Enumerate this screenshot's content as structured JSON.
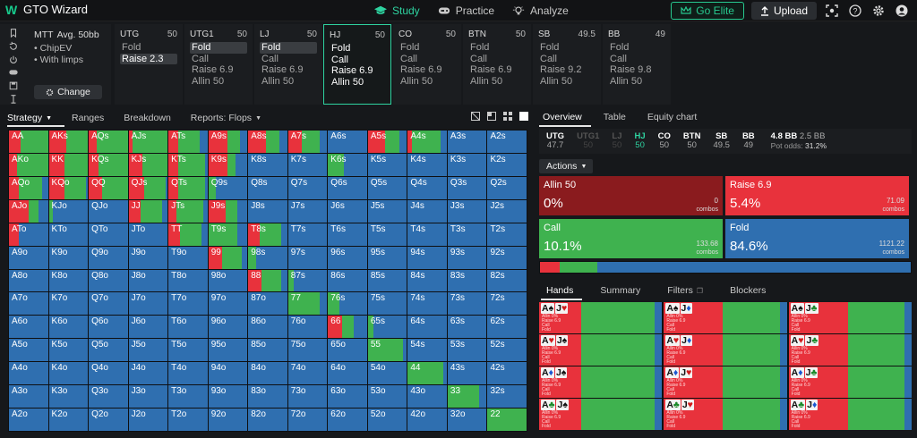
{
  "app": {
    "title": "GTO Wizard"
  },
  "nav": [
    {
      "label": "Study",
      "icon": "graduation-cap-icon",
      "active": true
    },
    {
      "label": "Practice",
      "icon": "gamepad-icon",
      "active": false
    },
    {
      "label": "Analyze",
      "icon": "lightbulb-icon",
      "active": false
    }
  ],
  "topbar": {
    "elite_label": "Go Elite",
    "upload_label": "Upload"
  },
  "settings": {
    "format": "MTT",
    "depth": "Avg. 50bb",
    "options": [
      "ChipEV",
      "With limps"
    ],
    "change_label": "Change"
  },
  "positions": [
    {
      "name": "UTG",
      "stack": "50",
      "actions": [
        "Fold",
        "Raise 2.3"
      ],
      "selected": 1,
      "active": false
    },
    {
      "name": "UTG1",
      "stack": "50",
      "actions": [
        "Fold",
        "Call",
        "Raise 6.9",
        "Allin 50"
      ],
      "selected": 0,
      "active": false
    },
    {
      "name": "LJ",
      "stack": "50",
      "actions": [
        "Fold",
        "Call",
        "Raise 6.9",
        "Allin 50"
      ],
      "selected": 0,
      "active": false
    },
    {
      "name": "HJ",
      "stack": "50",
      "actions": [
        "Fold",
        "Call",
        "Raise 6.9",
        "Allin 50"
      ],
      "selected": -1,
      "active": true
    },
    {
      "name": "CO",
      "stack": "50",
      "actions": [
        "Fold",
        "Call",
        "Raise 6.9",
        "Allin 50"
      ],
      "selected": -1,
      "active": false
    },
    {
      "name": "BTN",
      "stack": "50",
      "actions": [
        "Fold",
        "Call",
        "Raise 6.9",
        "Allin 50"
      ],
      "selected": -1,
      "active": false
    },
    {
      "name": "SB",
      "stack": "49.5",
      "actions": [
        "Fold",
        "Call",
        "Raise 9.2",
        "Allin 50"
      ],
      "selected": -1,
      "active": false
    },
    {
      "name": "BB",
      "stack": "49",
      "actions": [
        "Fold",
        "Call",
        "Raise 9.8",
        "Allin 50"
      ],
      "selected": -1,
      "active": false
    }
  ],
  "strategy_tabs": [
    "Strategy",
    "Ranges",
    "Breakdown",
    "Reports: Flops"
  ],
  "colors": {
    "fold": "#2f6fb0",
    "call": "#3fb24f",
    "raise": "#e8323c",
    "allin": "#8a1b1e",
    "accent": "#2ed3a0"
  },
  "ranks": [
    "A",
    "K",
    "Q",
    "J",
    "T",
    "9",
    "8",
    "7",
    "6",
    "5",
    "4",
    "3",
    "2"
  ],
  "grid_special": {
    "AA": [
      0,
      0.3,
      0.7
    ],
    "AKs": [
      0,
      0.45,
      0.55
    ],
    "AQs": [
      0,
      0.2,
      0.8
    ],
    "AJs": [
      0,
      0.1,
      0.9
    ],
    "ATs": [
      0,
      0.25,
      0.55
    ],
    "A9s": [
      0,
      0.5,
      0.3
    ],
    "A8s": [
      0,
      0.45,
      0.35
    ],
    "A7s": [
      0,
      0.35,
      0.45
    ],
    "A6s": [
      0,
      0,
      0
    ],
    "A5s": [
      0,
      0.45,
      0.35
    ],
    "A4s": [
      0,
      0.1,
      0.75
    ],
    "A3s": [
      0,
      0,
      0
    ],
    "A2s": [
      0,
      0,
      0
    ],
    "AKo": [
      0,
      0.2,
      0.8
    ],
    "KK": [
      0,
      0.4,
      0.6
    ],
    "KQs": [
      0,
      0.25,
      0.75
    ],
    "KJs": [
      0,
      0.35,
      0.65
    ],
    "KTs": [
      0,
      0.25,
      0.7
    ],
    "K9s": [
      0,
      0.5,
      0.2
    ],
    "K8s": [
      0,
      0,
      0
    ],
    "K7s": [
      0,
      0,
      0
    ],
    "K6s": [
      0,
      0,
      0.4
    ],
    "K5s": [
      0,
      0,
      0
    ],
    "AQo": [
      0,
      0.25,
      0.6
    ],
    "KQo": [
      0,
      0.4,
      0.55
    ],
    "QQ": [
      0,
      0.35,
      0.65
    ],
    "QJs": [
      0,
      0.4,
      0.55
    ],
    "QTs": [
      0,
      0.25,
      0.7
    ],
    "Q9s": [
      0,
      0,
      0.2
    ],
    "AJo": [
      0,
      0.5,
      0.25
    ],
    "KJo": [
      0,
      0,
      0.1
    ],
    "JJ": [
      0,
      0.3,
      0.55
    ],
    "JTs": [
      0,
      0.2,
      0.7
    ],
    "J9s": [
      0,
      0.45,
      0.3
    ],
    "ATo": [
      0,
      0.25,
      0
    ],
    "TT": [
      0,
      0.3,
      0.55
    ],
    "T9s": [
      0,
      0,
      0.75
    ],
    "T8s": [
      0,
      0.3,
      0.55
    ],
    "99": [
      0,
      0.35,
      0.5
    ],
    "88": [
      0,
      0.35,
      0.5
    ],
    "98s": [
      0,
      0,
      0.2
    ],
    "87s": [
      0,
      0,
      0.15
    ],
    "77": [
      0,
      0,
      0.8
    ],
    "76s": [
      0,
      0,
      0.3
    ],
    "66": [
      0,
      0.35,
      0.3
    ],
    "65s": [
      0,
      0,
      0.15
    ],
    "55": [
      0,
      0,
      0.9
    ],
    "54s": [
      0,
      0,
      0
    ],
    "44": [
      0,
      0,
      0.9
    ],
    "33": [
      0,
      0,
      0.8
    ],
    "22": [
      0,
      0,
      1
    ]
  },
  "overview_tabs": [
    "Overview",
    "Table",
    "Equity chart"
  ],
  "posbar": [
    {
      "name": "UTG",
      "stack": "47.7",
      "state": "normal"
    },
    {
      "name": "UTG1",
      "stack": "50",
      "state": "dim"
    },
    {
      "name": "LJ",
      "stack": "50",
      "state": "dim"
    },
    {
      "name": "HJ",
      "stack": "50",
      "state": "hj"
    },
    {
      "name": "CO",
      "stack": "50",
      "state": "normal"
    },
    {
      "name": "BTN",
      "stack": "50",
      "state": "normal"
    },
    {
      "name": "SB",
      "stack": "49.5",
      "state": "normal"
    },
    {
      "name": "BB",
      "stack": "49",
      "state": "normal"
    }
  ],
  "pot": {
    "bb": "4.8 BB",
    "eff": "2.5 BB",
    "odds_label": "Pot odds:",
    "odds": "31.2%"
  },
  "actions_label": "Actions",
  "action_boxes": [
    {
      "name": "Allin 50",
      "pct": "0%",
      "combos": "0",
      "combos_label": "combos",
      "color": "#8a1b1e",
      "share": 0
    },
    {
      "name": "Raise 6.9",
      "pct": "5.4%",
      "combos": "71.09",
      "combos_label": "combos",
      "color": "#e8323c",
      "share": 0.054
    },
    {
      "name": "Call",
      "pct": "10.1%",
      "combos": "133.68",
      "combos_label": "combos",
      "color": "#3fb24f",
      "share": 0.101
    },
    {
      "name": "Fold",
      "pct": "84.6%",
      "combos": "1121.22",
      "combos_label": "combos",
      "color": "#2f6fb0",
      "share": 0.846
    }
  ],
  "hand_tabs": [
    "Hands",
    "Summary",
    "Filters",
    "Blockers"
  ],
  "hand_mini": [
    "Allin 0%",
    "Raise 6.9",
    "Call",
    "Fold"
  ],
  "hands": [
    {
      "c1": "A",
      "s1": "♠",
      "c2": "J",
      "s2": "♥",
      "s1c": "#111",
      "s2c": "#d01b1b",
      "red": 0.34,
      "green": 0.34
    },
    {
      "c1": "A",
      "s1": "♠",
      "c2": "J",
      "s2": "♦",
      "s1c": "#111",
      "s2c": "#1b57d0",
      "red": 0.48,
      "green": 0.24
    },
    {
      "c1": "A",
      "s1": "♠",
      "c2": "J",
      "s2": "♣",
      "s1c": "#111",
      "s2c": "#1a8a2a",
      "red": 0.48,
      "green": 0.24
    },
    {
      "c1": "A",
      "s1": "♥",
      "c2": "J",
      "s2": "♠",
      "s1c": "#d01b1b",
      "s2c": "#111",
      "red": 0.34,
      "green": 0.34
    },
    {
      "c1": "A",
      "s1": "♥",
      "c2": "J",
      "s2": "♦",
      "s1c": "#d01b1b",
      "s2c": "#1b57d0",
      "red": 0.48,
      "green": 0.24
    },
    {
      "c1": "A",
      "s1": "♥",
      "c2": "J",
      "s2": "♣",
      "s1c": "#d01b1b",
      "s2c": "#1a8a2a",
      "red": 0.48,
      "green": 0.24
    },
    {
      "c1": "A",
      "s1": "♦",
      "c2": "J",
      "s2": "♠",
      "s1c": "#1b57d0",
      "s2c": "#111",
      "red": 0.34,
      "green": 0.34
    },
    {
      "c1": "A",
      "s1": "♦",
      "c2": "J",
      "s2": "♥",
      "s1c": "#1b57d0",
      "s2c": "#d01b1b",
      "red": 0.48,
      "green": 0.24
    },
    {
      "c1": "A",
      "s1": "♦",
      "c2": "J",
      "s2": "♣",
      "s1c": "#1b57d0",
      "s2c": "#1a8a2a",
      "red": 0.48,
      "green": 0.24
    },
    {
      "c1": "A",
      "s1": "♣",
      "c2": "J",
      "s2": "♠",
      "s1c": "#1a8a2a",
      "s2c": "#111",
      "red": 0.34,
      "green": 0.34
    },
    {
      "c1": "A",
      "s1": "♣",
      "c2": "J",
      "s2": "♥",
      "s1c": "#1a8a2a",
      "s2c": "#d01b1b",
      "red": 0.48,
      "green": 0.24
    },
    {
      "c1": "A",
      "s1": "♣",
      "c2": "J",
      "s2": "♦",
      "s1c": "#1a8a2a",
      "s2c": "#1b57d0",
      "red": 0.48,
      "green": 0.24
    }
  ]
}
